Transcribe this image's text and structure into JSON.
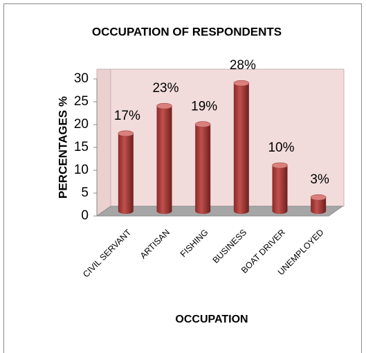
{
  "chart_data": {
    "type": "bar",
    "title": "OCCUPATION OF RESPONDENTS",
    "x_label": "OCCUPATION",
    "y_label": "PERCENTAGES %",
    "categories": [
      "CIVIL SERVANT",
      "ARTISAN",
      "FISHING",
      "BUSINESS",
      "BOAT DRIVER",
      "UNEMPLOYED"
    ],
    "values": [
      17,
      23,
      19,
      28,
      10,
      3
    ],
    "value_labels": [
      "17%",
      "23%",
      "19%",
      "28%",
      "10%",
      "3%"
    ],
    "color": "#c0504d",
    "ylim": [
      0,
      30
    ],
    "yticks": [
      0,
      5,
      10,
      15,
      20,
      25,
      30
    ]
  }
}
